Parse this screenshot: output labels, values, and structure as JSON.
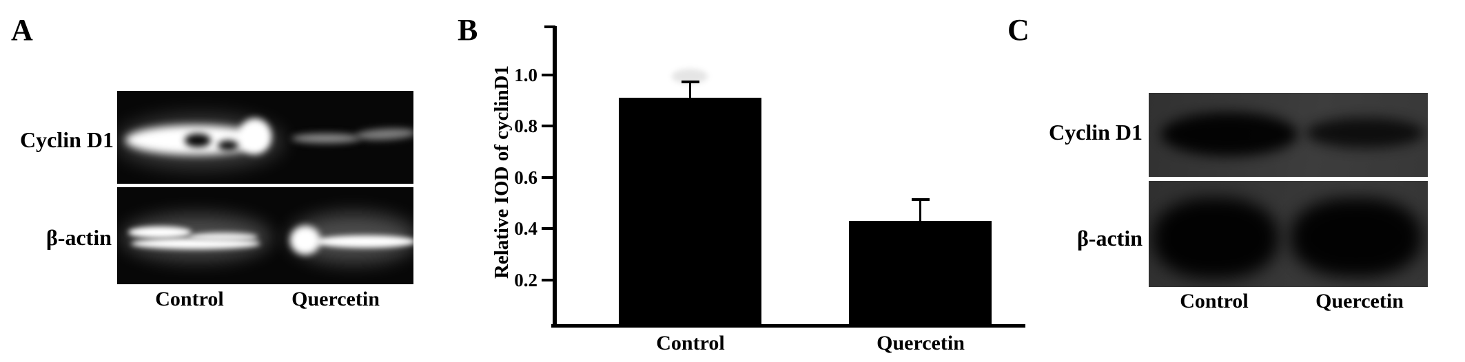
{
  "figure": {
    "description": "Three-panel western blot figure with densitometry bar chart"
  },
  "panel_a": {
    "label": "A",
    "row_labels": [
      "Cyclin D1",
      "β-actin"
    ],
    "lane_labels": [
      "Control",
      "Quercetin"
    ]
  },
  "panel_b": {
    "label": "B"
  },
  "panel_c": {
    "label": "C",
    "row_labels": [
      "Cyclin D1",
      "β-actin"
    ],
    "lane_labels": [
      "Control",
      "Quercetin"
    ]
  },
  "chart_data": {
    "type": "bar",
    "title": "",
    "xlabel": "",
    "ylabel": "Relative IOD of cyclinD1",
    "categories": [
      "Control",
      "Quercetin"
    ],
    "values": [
      0.91,
      0.43
    ],
    "errors_plus": [
      0.06,
      0.08
    ],
    "yticks": [
      0.2,
      0.4,
      0.6,
      0.8,
      1.0
    ],
    "ytick_labels": [
      "0.2",
      "0.4",
      "0.6",
      "0.8",
      "1.0"
    ],
    "ylim": [
      0,
      1.19
    ],
    "grid": false,
    "legend": null,
    "bar_color": "#000000",
    "error_color": "#000000",
    "axis_color": "#000000"
  }
}
